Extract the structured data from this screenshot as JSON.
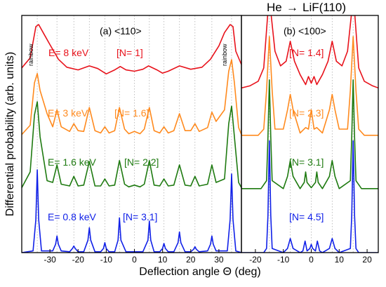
{
  "figure": {
    "title_prefix": "He",
    "title_arrow": "→",
    "title_suffix": "LiF(110)",
    "ylabel": "Differential probability (arb. units)",
    "xlabel": "Deflection angle Θ (deg)"
  },
  "colors": {
    "red": "#e8121b",
    "orange": "#ff8a1e",
    "green": "#1e7a10",
    "blue": "#1020e8",
    "grid": "#b0b0b0",
    "axis": "#000000"
  },
  "chart_data": [
    {
      "type": "line",
      "panel_label": "(a) <110>",
      "xlabel": "Deflection angle Θ (deg)",
      "ylabel": "Differential probability (arb. units)",
      "xlim": [
        -40,
        38
      ],
      "xticks": [
        -30,
        -20,
        -10,
        0,
        10,
        20,
        30
      ],
      "grid": "vertical dotted lines at peak positions",
      "peak_positions": [
        -34.5,
        -27.5,
        -21.5,
        -16,
        -10.5,
        -5.3,
        0,
        5.3,
        10.5,
        16,
        21.5,
        27.5,
        34.5
      ],
      "rainbow_label": "rainbow",
      "series": [
        {
          "name": "E= 8 keV",
          "scaling": "[N= 1]",
          "color": "red",
          "x": [
            -40,
            -37,
            -35,
            -34,
            -32,
            -30,
            -27,
            -24,
            -20,
            -16,
            -13,
            -10,
            -7,
            -5,
            -3,
            0,
            3,
            5,
            8,
            10,
            12,
            16,
            20,
            24,
            27,
            30,
            32,
            34,
            35,
            36,
            38
          ],
          "y": [
            0.35,
            0.5,
            0.97,
            1.0,
            0.85,
            0.7,
            0.48,
            0.36,
            0.32,
            0.38,
            0.34,
            0.26,
            0.32,
            0.37,
            0.32,
            0.3,
            0.33,
            0.38,
            0.32,
            0.27,
            0.3,
            0.38,
            0.33,
            0.36,
            0.48,
            0.68,
            0.88,
            1.0,
            0.97,
            0.6,
            0.4
          ]
        },
        {
          "name": "E= 3 keV",
          "scaling": "[N= 1.6]",
          "color": "orange",
          "x": [
            -40,
            -37,
            -35.5,
            -34.5,
            -33.5,
            -31,
            -29,
            -27.5,
            -26,
            -23,
            -21.5,
            -20,
            -18,
            -16,
            -14,
            -12,
            -10.5,
            -9,
            -7,
            -5.3,
            -3.5,
            -2,
            0,
            2,
            3.5,
            5.3,
            7,
            9,
            10.5,
            12,
            14,
            16,
            18,
            20,
            21.5,
            23,
            26,
            27.5,
            29,
            32,
            33.5,
            34.5,
            35.5,
            37,
            38
          ],
          "y": [
            0.03,
            0.15,
            0.7,
            0.82,
            0.6,
            0.3,
            0.13,
            0.35,
            0.13,
            0.07,
            0.17,
            0.08,
            0.07,
            0.38,
            0.08,
            0.05,
            0.13,
            0.05,
            0.08,
            0.38,
            0.1,
            0.04,
            0.07,
            0.04,
            0.1,
            0.38,
            0.08,
            0.05,
            0.13,
            0.05,
            0.08,
            0.3,
            0.08,
            0.08,
            0.17,
            0.07,
            0.12,
            0.32,
            0.2,
            0.35,
            0.85,
            1.0,
            0.7,
            0.12,
            0.03
          ]
        },
        {
          "name": "E= 1.6 keV",
          "scaling": "[N= 2.2]",
          "color": "green",
          "x": [
            -40,
            -37,
            -35.5,
            -34.5,
            -33.5,
            -31,
            -29,
            -27.5,
            -26,
            -23,
            -21.5,
            -20,
            -18,
            -16,
            -14,
            -12,
            -10.5,
            -9,
            -7,
            -5.3,
            -3.5,
            -2,
            0,
            2,
            3.5,
            5.3,
            7,
            9,
            10.5,
            12,
            14,
            16,
            18,
            20,
            21.5,
            23,
            26,
            27.5,
            29,
            32,
            33.5,
            34.5,
            35.5,
            37,
            38
          ],
          "y": [
            0.02,
            0.2,
            0.85,
            1.0,
            0.6,
            0.1,
            0.08,
            0.28,
            0.06,
            0.04,
            0.15,
            0.04,
            0.05,
            0.32,
            0.04,
            0.04,
            0.12,
            0.04,
            0.05,
            0.33,
            0.06,
            0.03,
            0.05,
            0.03,
            0.06,
            0.33,
            0.05,
            0.04,
            0.12,
            0.04,
            0.05,
            0.28,
            0.05,
            0.04,
            0.15,
            0.04,
            0.06,
            0.28,
            0.08,
            0.12,
            0.75,
            0.95,
            0.6,
            0.08,
            0.02
          ]
        },
        {
          "name": "E= 0.8 keV",
          "scaling": "[N= 3.1]",
          "color": "blue",
          "x": [
            -40,
            -36,
            -35,
            -34.5,
            -34,
            -33,
            -29,
            -28,
            -27.5,
            -27,
            -26,
            -23,
            -22,
            -21.5,
            -21,
            -20,
            -18,
            -16.5,
            -16,
            -15.5,
            -14,
            -12,
            -11,
            -10.5,
            -10,
            -9,
            -7,
            -5.8,
            -5.3,
            -4.8,
            -3,
            0,
            3,
            4.8,
            5.3,
            5.8,
            7,
            9,
            10,
            10.5,
            11,
            12,
            14,
            15.5,
            16,
            16.5,
            18,
            20,
            21,
            21.5,
            22,
            23,
            26,
            27,
            27.5,
            28,
            29,
            33,
            34,
            34.5,
            35,
            36,
            38
          ],
          "y": [
            0,
            0.02,
            0.4,
            1.0,
            0.4,
            0.02,
            0.02,
            0.1,
            0.2,
            0.1,
            0.02,
            0.01,
            0.05,
            0.08,
            0.05,
            0.01,
            0.01,
            0.15,
            0.3,
            0.15,
            0.01,
            0.01,
            0.05,
            0.12,
            0.05,
            0.01,
            0.01,
            0.15,
            0.42,
            0.15,
            0.01,
            0.01,
            0.01,
            0.15,
            0.38,
            0.15,
            0.01,
            0.01,
            0.05,
            0.11,
            0.05,
            0.01,
            0.01,
            0.12,
            0.25,
            0.12,
            0.01,
            0.01,
            0.04,
            0.07,
            0.04,
            0.01,
            0.02,
            0.1,
            0.2,
            0.1,
            0.02,
            0.02,
            0.4,
            0.95,
            0.4,
            0.02,
            0
          ]
        }
      ]
    },
    {
      "type": "line",
      "panel_label": "(b) <100>",
      "xlabel": "Deflection angle Θ (deg)",
      "xlim": [
        -25,
        24
      ],
      "xticks": [
        -20,
        -10,
        0,
        10,
        20
      ],
      "grid": "vertical dotted lines at peak positions",
      "peak_positions": [
        -15,
        -7.5,
        0,
        7.5,
        15
      ],
      "series": [
        {
          "name": "E= 8 keV",
          "scaling": "[N= 1.4]",
          "color": "red",
          "x": [
            -25,
            -22,
            -19,
            -17,
            -15.5,
            -15,
            -14.5,
            -13,
            -11,
            -9,
            -7.5,
            -6,
            -4,
            -2,
            -1,
            0,
            1,
            2,
            4,
            6,
            7.5,
            9,
            11,
            13,
            14.5,
            15,
            15.5,
            17,
            19,
            22,
            24
          ],
          "y": [
            0.05,
            0.08,
            0.15,
            0.35,
            1.2,
            1.3,
            1.2,
            0.6,
            0.38,
            0.45,
            0.75,
            0.45,
            0.25,
            0.1,
            0.22,
            0.12,
            0.22,
            0.1,
            0.25,
            0.45,
            0.75,
            0.45,
            0.38,
            0.6,
            1.2,
            1.3,
            1.2,
            0.35,
            0.15,
            0.08,
            0.05
          ]
        },
        {
          "name": "E= 3 keV",
          "scaling": "[N= 2.3]",
          "color": "orange",
          "x": [
            -25,
            -19,
            -17,
            -16,
            -15,
            -14,
            -13,
            -10,
            -8.5,
            -7.5,
            -6.5,
            -4,
            -2,
            -1,
            0,
            1,
            2,
            4,
            6.5,
            7.5,
            8.5,
            10,
            13,
            14,
            15,
            16,
            17,
            19,
            24
          ],
          "y": [
            0.02,
            0.02,
            0.1,
            0.6,
            1.3,
            0.6,
            0.1,
            0.1,
            0.35,
            0.55,
            0.35,
            0.05,
            0.12,
            0.1,
            0.35,
            0.1,
            0.12,
            0.05,
            0.35,
            0.55,
            0.35,
            0.1,
            0.1,
            0.6,
            1.3,
            0.6,
            0.1,
            0.02,
            0.02
          ]
        },
        {
          "name": "E= 1.6 keV",
          "scaling": "[N= 3.1]",
          "color": "green",
          "x": [
            -25,
            -18,
            -16,
            -15.5,
            -15,
            -14.5,
            -14,
            -10,
            -8.5,
            -7.5,
            -6.5,
            -4,
            -2.5,
            -2,
            -1.5,
            0,
            1.5,
            2,
            2.5,
            4,
            6.5,
            7.5,
            8.5,
            10,
            14,
            14.5,
            15,
            15.5,
            16,
            18,
            24
          ],
          "y": [
            0.01,
            0.01,
            0.1,
            0.6,
            1.25,
            0.6,
            0.1,
            0.01,
            0.15,
            0.33,
            0.15,
            0.01,
            0.08,
            0.2,
            0.08,
            0.02,
            0.08,
            0.2,
            0.08,
            0.01,
            0.15,
            0.33,
            0.15,
            0.01,
            0.1,
            0.6,
            1.25,
            0.6,
            0.1,
            0.01,
            0.01
          ]
        },
        {
          "name": "E= 0.8 keV",
          "scaling": "[N= 4.5]",
          "color": "blue",
          "x": [
            -25,
            -17,
            -16,
            -15.5,
            -15,
            -14.5,
            -14,
            -10,
            -8.5,
            -7.5,
            -6.5,
            -4,
            -3,
            -2.2,
            -1.5,
            -0.5,
            0,
            0.5,
            1.5,
            2.2,
            3,
            4,
            6.5,
            7.5,
            8.5,
            10,
            14,
            14.5,
            15,
            15.5,
            16,
            17,
            24
          ],
          "y": [
            0,
            0,
            0.05,
            0.45,
            1.35,
            0.45,
            0.05,
            0,
            0.05,
            0.17,
            0.05,
            0,
            0.02,
            0.14,
            0.02,
            0.05,
            0.1,
            0.05,
            0.02,
            0.14,
            0.02,
            0,
            0.05,
            0.17,
            0.05,
            0,
            0.05,
            0.45,
            1.35,
            0.45,
            0.05,
            0,
            0
          ]
        }
      ]
    }
  ]
}
